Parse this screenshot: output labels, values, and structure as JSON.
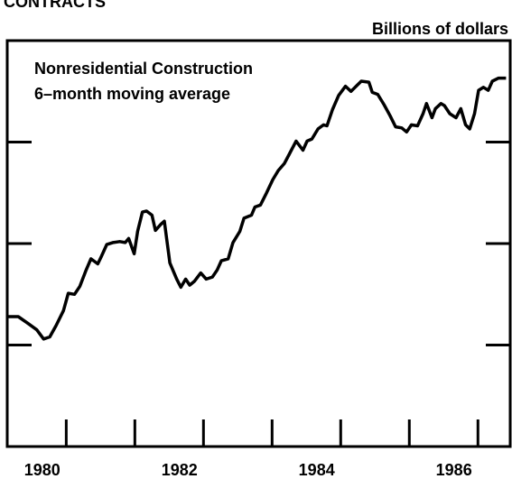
{
  "chart_data": {
    "type": "line",
    "title": "CONTRACTS",
    "y_label": "Billions of dollars",
    "annotation": [
      "Nonresidential Construction",
      "6–month moving average"
    ],
    "xlim": [
      1980.14,
      1987.47
    ],
    "ylim": [
      0,
      4
    ],
    "yticks": [
      1,
      2,
      3
    ],
    "xticks": [
      1981,
      1982,
      1983,
      1984,
      1985,
      1986,
      1987
    ],
    "xlabels": [
      1980,
      1982,
      1984,
      1986
    ],
    "grid": false,
    "series": [
      {
        "color": "#000000",
        "x": [
          1980.14,
          1980.3,
          1980.43,
          1980.57,
          1980.67,
          1980.76,
          1980.85,
          1980.96,
          1981.03,
          1981.12,
          1981.2,
          1981.29,
          1981.36,
          1981.46,
          1981.51,
          1981.59,
          1981.68,
          1981.78,
          1981.86,
          1981.91,
          1981.99,
          1982.04,
          1982.11,
          1982.17,
          1982.25,
          1982.3,
          1982.38,
          1982.43,
          1982.51,
          1982.61,
          1982.67,
          1982.74,
          1982.8,
          1982.87,
          1982.96,
          1983.04,
          1983.13,
          1983.2,
          1983.26,
          1983.36,
          1983.43,
          1983.53,
          1983.59,
          1983.7,
          1983.75,
          1983.83,
          1983.92,
          1984.01,
          1984.09,
          1984.18,
          1984.25,
          1984.35,
          1984.45,
          1984.51,
          1984.58,
          1984.67,
          1984.75,
          1984.8,
          1984.88,
          1984.97,
          1985.07,
          1985.15,
          1985.24,
          1985.3,
          1985.41,
          1985.46,
          1985.54,
          1985.63,
          1985.72,
          1985.8,
          1985.89,
          1985.96,
          1986.03,
          1986.12,
          1986.2,
          1986.25,
          1986.33,
          1986.38,
          1986.46,
          1986.51,
          1986.59,
          1986.68,
          1986.75,
          1986.82,
          1986.88,
          1986.95,
          1987.01,
          1987.08,
          1987.15,
          1987.21,
          1987.3,
          1987.41
        ],
        "values": [
          1.28,
          1.28,
          1.22,
          1.15,
          1.06,
          1.08,
          1.19,
          1.34,
          1.51,
          1.5,
          1.58,
          1.74,
          1.85,
          1.8,
          1.87,
          1.99,
          2.01,
          2.02,
          2.01,
          2.05,
          1.9,
          2.12,
          2.31,
          2.32,
          2.28,
          2.13,
          2.19,
          2.22,
          1.81,
          1.65,
          1.57,
          1.65,
          1.59,
          1.63,
          1.71,
          1.65,
          1.67,
          1.74,
          1.83,
          1.85,
          2.01,
          2.12,
          2.25,
          2.28,
          2.36,
          2.38,
          2.5,
          2.63,
          2.72,
          2.79,
          2.88,
          3.01,
          2.92,
          3.01,
          3.03,
          3.13,
          3.17,
          3.16,
          3.32,
          3.46,
          3.55,
          3.5,
          3.56,
          3.6,
          3.59,
          3.49,
          3.47,
          3.37,
          3.26,
          3.15,
          3.14,
          3.1,
          3.17,
          3.16,
          3.28,
          3.38,
          3.24,
          3.33,
          3.38,
          3.36,
          3.28,
          3.24,
          3.33,
          3.17,
          3.13,
          3.28,
          3.51,
          3.54,
          3.51,
          3.6,
          3.63,
          3.63
        ]
      }
    ]
  }
}
